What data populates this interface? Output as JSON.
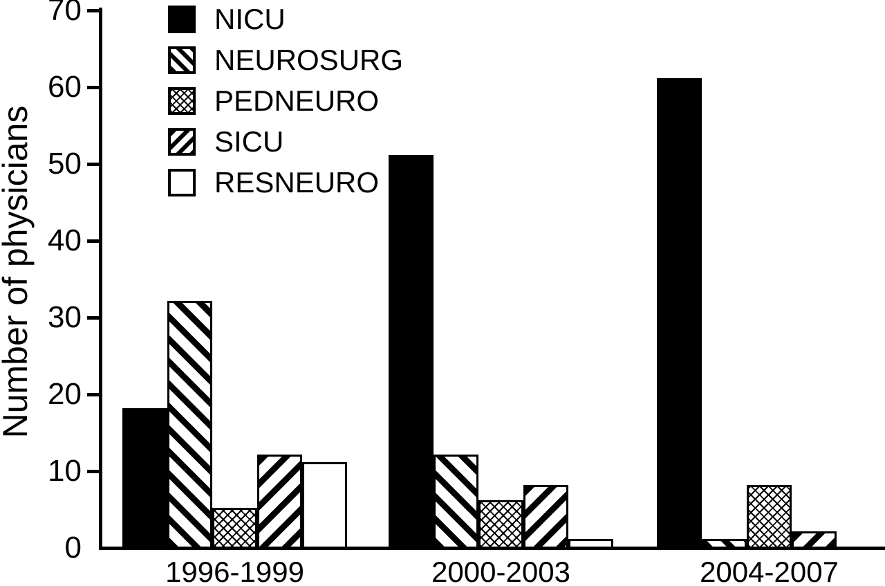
{
  "chart_data": {
    "type": "bar",
    "title": "",
    "xlabel": "",
    "ylabel": "Number of physicians",
    "categories": [
      "1996-1999",
      "2000-2003",
      "2004-2007"
    ],
    "series": [
      {
        "name": "NICU",
        "pattern": "solid",
        "values": [
          18,
          51,
          61
        ]
      },
      {
        "name": "NEUROSURG",
        "pattern": "diagonal-down",
        "values": [
          32,
          12,
          1
        ]
      },
      {
        "name": "PEDNEURO",
        "pattern": "crosshatch",
        "values": [
          5,
          6,
          8
        ]
      },
      {
        "name": "SICU",
        "pattern": "diagonal-up",
        "values": [
          12,
          8,
          2
        ]
      },
      {
        "name": "RESNEURO",
        "pattern": "white",
        "values": [
          11,
          1,
          0
        ]
      }
    ],
    "ylim": [
      0,
      70
    ],
    "yticks": [
      0,
      10,
      20,
      30,
      40,
      50,
      60,
      70
    ],
    "legend_position": "top-left",
    "grid": false,
    "colors": {
      "bar_fill": "#000000",
      "background": "#ffffff",
      "text": "#000000"
    }
  }
}
